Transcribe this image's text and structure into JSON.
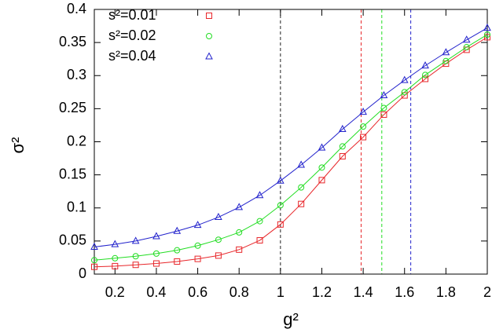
{
  "chart_data": {
    "type": "line",
    "xlabel": "g²",
    "ylabel": "σ²",
    "x": [
      0.1,
      0.2,
      0.3,
      0.4,
      0.5,
      0.6,
      0.7,
      0.8,
      0.9,
      1.0,
      1.1,
      1.2,
      1.3,
      1.4,
      1.5,
      1.6,
      1.7,
      1.8,
      1.9,
      2.0
    ],
    "series": [
      {
        "name": "s²=0.01",
        "color": "#e8262a",
        "marker": "square",
        "values": [
          0.011,
          0.012,
          0.014,
          0.016,
          0.019,
          0.023,
          0.028,
          0.037,
          0.051,
          0.075,
          0.106,
          0.142,
          0.178,
          0.207,
          0.241,
          0.27,
          0.295,
          0.318,
          0.339,
          0.358
        ]
      },
      {
        "name": "s²=0.02",
        "color": "#22dd22",
        "marker": "circle",
        "values": [
          0.021,
          0.024,
          0.027,
          0.031,
          0.036,
          0.043,
          0.052,
          0.063,
          0.08,
          0.104,
          0.131,
          0.161,
          0.193,
          0.223,
          0.251,
          0.275,
          0.301,
          0.322,
          0.343,
          0.362
        ]
      },
      {
        "name": "s²=0.04",
        "color": "#2222cc",
        "marker": "triangle",
        "values": [
          0.041,
          0.045,
          0.05,
          0.057,
          0.065,
          0.074,
          0.086,
          0.101,
          0.119,
          0.141,
          0.165,
          0.191,
          0.219,
          0.245,
          0.27,
          0.293,
          0.315,
          0.335,
          0.354,
          0.372
        ]
      }
    ],
    "vlines": [
      {
        "x": 1.0,
        "color": "#222222"
      },
      {
        "x": 1.39,
        "color": "#e8262a"
      },
      {
        "x": 1.49,
        "color": "#22dd22"
      },
      {
        "x": 1.63,
        "color": "#2222cc"
      }
    ],
    "xlim": [
      0.1,
      2
    ],
    "ylim": [
      0,
      0.4
    ],
    "xticks": [
      0.2,
      0.4,
      0.6,
      0.8,
      1,
      1.2,
      1.4,
      1.6,
      1.8,
      2
    ],
    "yticks": [
      0,
      0.05,
      0.1,
      0.15,
      0.2,
      0.25,
      0.3,
      0.35,
      0.4
    ],
    "legend": "top-left",
    "grid": false
  }
}
